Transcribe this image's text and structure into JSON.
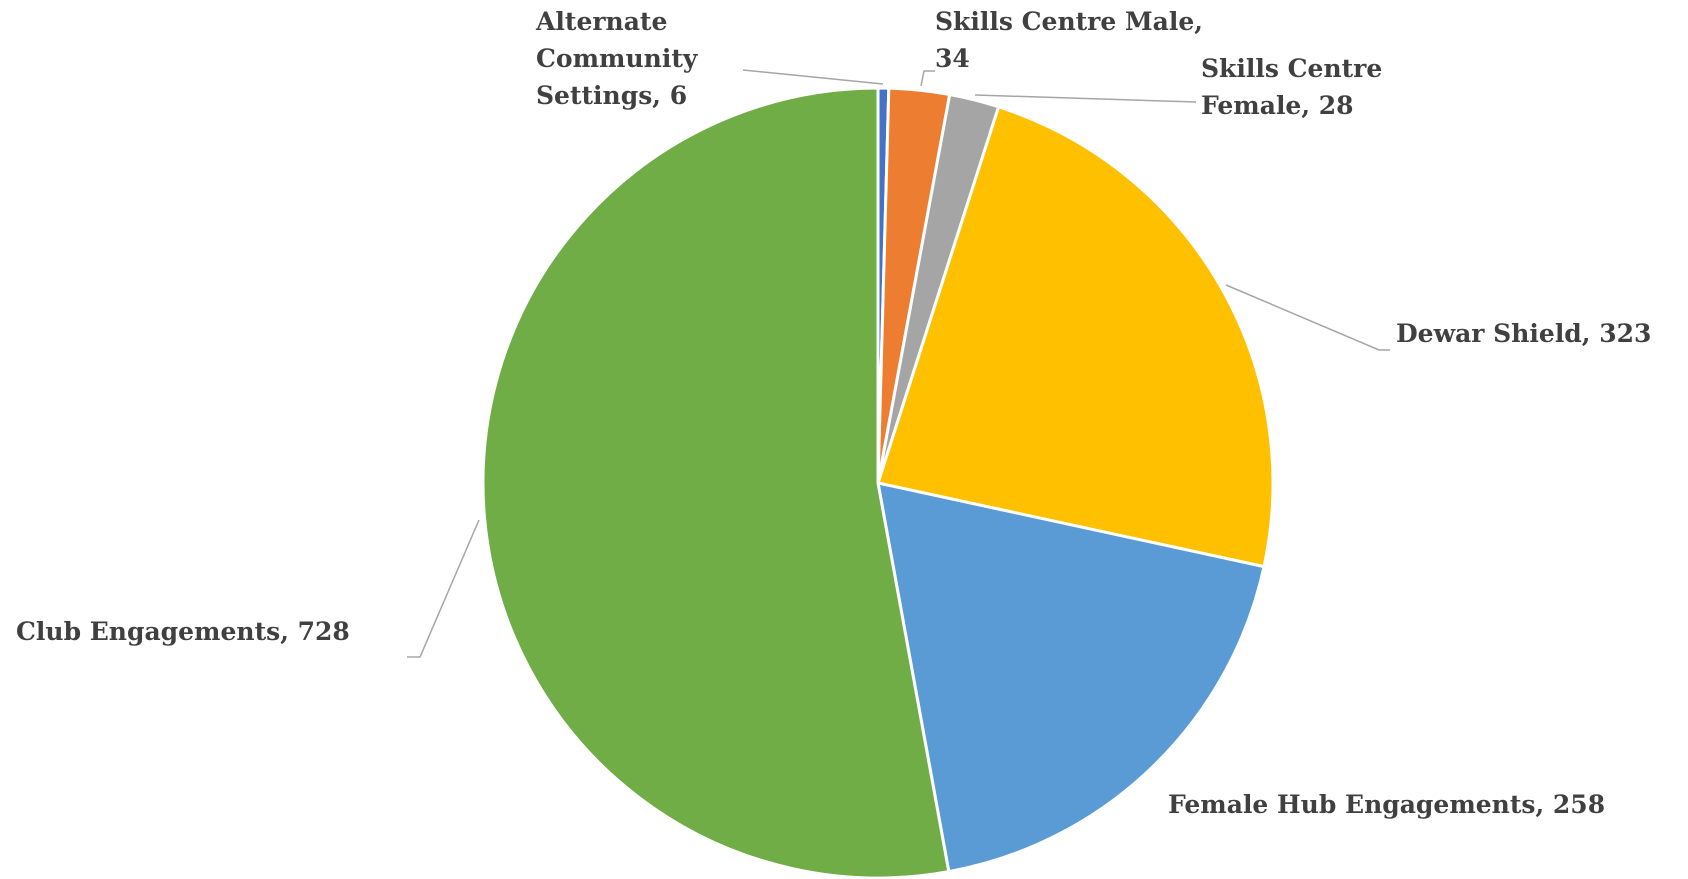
{
  "chart_data": {
    "type": "pie",
    "categories": [
      "Alternate Community Settings",
      "Skills Centre Male",
      "Skills Centre Female",
      "Dewar Shield",
      "Female Hub Engagements",
      "Club Engagements"
    ],
    "values": [
      6,
      34,
      28,
      323,
      258,
      728
    ],
    "colors": [
      "#4472c4",
      "#ed7d31",
      "#a5a5a5",
      "#ffc000",
      "#5b9bd5",
      "#70ad47"
    ]
  }
}
